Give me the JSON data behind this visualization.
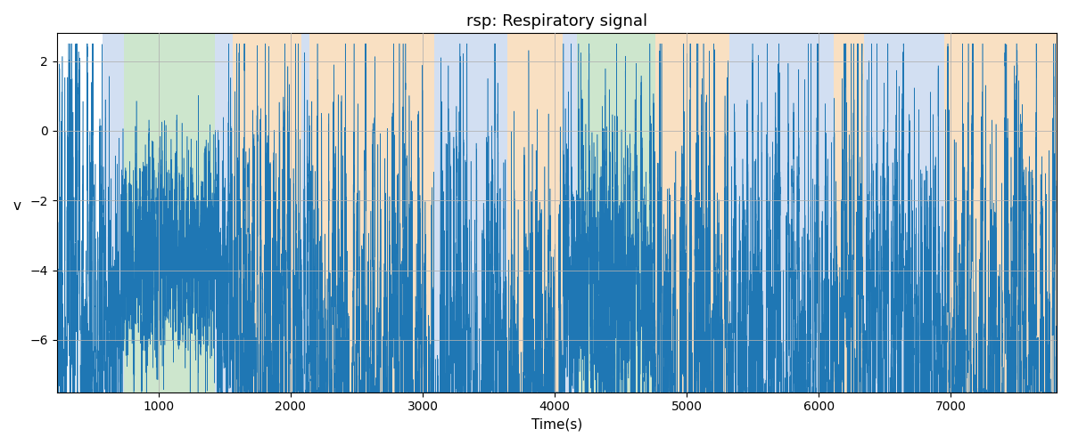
{
  "title": "rsp: Respiratory signal",
  "xlabel": "Time(s)",
  "ylabel": "v",
  "xlim": [
    230,
    7800
  ],
  "ylim": [
    -7.5,
    2.8
  ],
  "line_color": "#1f77b4",
  "background_color": "#ffffff",
  "grid": true,
  "grid_color": "#b0b0b0",
  "bands": [
    {
      "xmin": 580,
      "xmax": 740,
      "color": "#aec6e8",
      "alpha": 0.55
    },
    {
      "xmin": 740,
      "xmax": 1430,
      "color": "#90c990",
      "alpha": 0.45
    },
    {
      "xmin": 1430,
      "xmax": 1560,
      "color": "#aec6e8",
      "alpha": 0.55
    },
    {
      "xmin": 1560,
      "xmax": 2080,
      "color": "#f5c890",
      "alpha": 0.55
    },
    {
      "xmin": 2080,
      "xmax": 2140,
      "color": "#aec6e8",
      "alpha": 0.55
    },
    {
      "xmin": 2140,
      "xmax": 3090,
      "color": "#f5c890",
      "alpha": 0.55
    },
    {
      "xmin": 3090,
      "xmax": 3640,
      "color": "#aec6e8",
      "alpha": 0.55
    },
    {
      "xmin": 3640,
      "xmax": 4060,
      "color": "#f5c890",
      "alpha": 0.55
    },
    {
      "xmin": 4060,
      "xmax": 4170,
      "color": "#aec6e8",
      "alpha": 0.55
    },
    {
      "xmin": 4170,
      "xmax": 4760,
      "color": "#90c990",
      "alpha": 0.45
    },
    {
      "xmin": 4760,
      "xmax": 5320,
      "color": "#f5c890",
      "alpha": 0.55
    },
    {
      "xmin": 5320,
      "xmax": 6110,
      "color": "#aec6e8",
      "alpha": 0.55
    },
    {
      "xmin": 6110,
      "xmax": 6340,
      "color": "#f5c890",
      "alpha": 0.55
    },
    {
      "xmin": 6340,
      "xmax": 6950,
      "color": "#aec6e8",
      "alpha": 0.55
    },
    {
      "xmin": 6950,
      "xmax": 7120,
      "color": "#f5c890",
      "alpha": 0.55
    },
    {
      "xmin": 7120,
      "xmax": 7800,
      "color": "#f5c890",
      "alpha": 0.55
    }
  ],
  "xticks": [
    1000,
    2000,
    3000,
    4000,
    5000,
    6000,
    7000
  ],
  "yticks": [
    2,
    0,
    -2,
    -4,
    -6
  ],
  "seed": 42,
  "n_points": 76000,
  "x_start": 230,
  "x_end": 7800
}
